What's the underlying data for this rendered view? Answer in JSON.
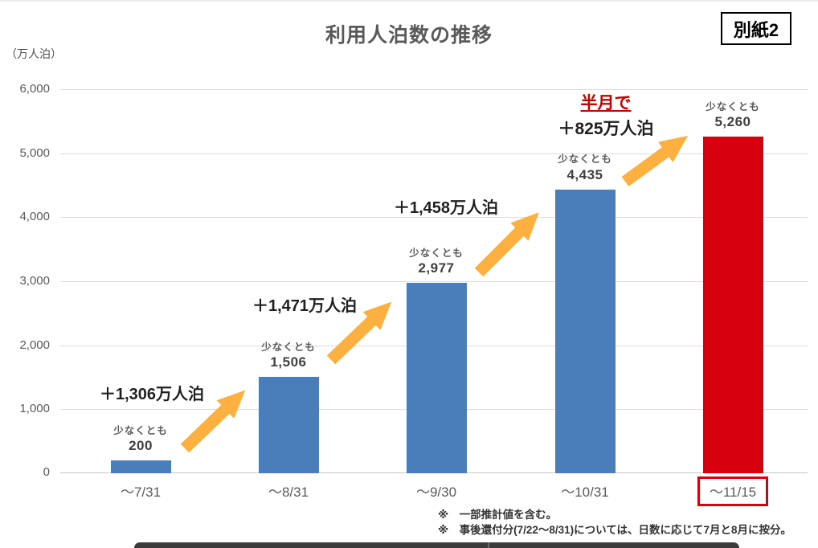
{
  "header": {
    "title": "利用人泊数の推移",
    "ref_label": "別紙2"
  },
  "chart_data": {
    "type": "bar",
    "title": "利用人泊数の推移",
    "ylabel": "（万人泊）",
    "ylim": [
      0,
      6000
    ],
    "ytick_step": 1000,
    "yticks": [
      "0",
      "1,000",
      "2,000",
      "3,000",
      "4,000",
      "5,000",
      "6,000"
    ],
    "grid": true,
    "categories": [
      "～7/31",
      "～8/31",
      "～9/30",
      "～10/31",
      "～11/15"
    ],
    "values": [
      200,
      1506,
      2977,
      4435,
      5260
    ],
    "value_labels": [
      "200",
      "1,506",
      "2,977",
      "4,435",
      "5,260"
    ],
    "value_prefix": "少なくとも",
    "bar_colors": [
      "#4a7ebb",
      "#4a7ebb",
      "#4a7ebb",
      "#4a7ebb",
      "#d7000f"
    ],
    "highlight_category_index": 4,
    "highlight_box_color": "#d7000f",
    "arrow_color": "#fbb040",
    "increments": [
      {
        "label": "＋1,306万人泊"
      },
      {
        "label": "＋1,471万人泊"
      },
      {
        "label": "＋1,458万人泊"
      },
      {
        "label": "＋825万人泊",
        "note": "半月で",
        "note_color": "#c00000"
      }
    ]
  },
  "footnotes": [
    "※　一部推計値を含む。",
    "※　事後還付分(7/22～8/31)については、日数に応じて7月と8月に按分。"
  ]
}
